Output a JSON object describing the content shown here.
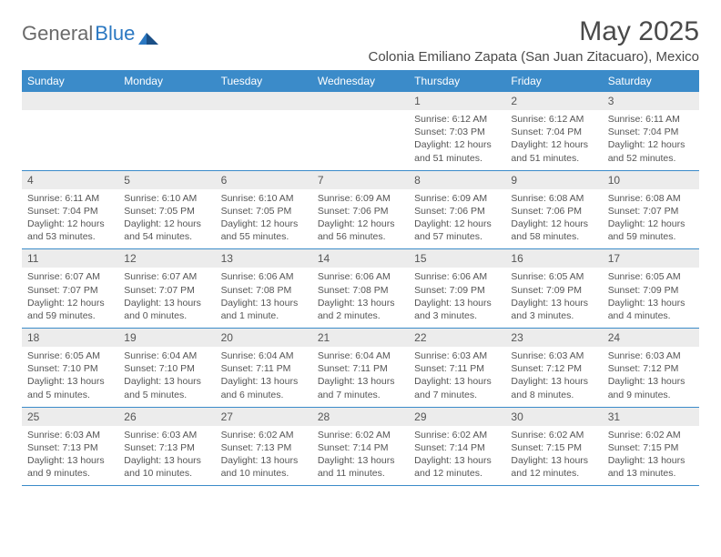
{
  "brand": {
    "part1": "General",
    "part2": "Blue"
  },
  "title": "May 2025",
  "location": "Colonia Emiliano Zapata (San Juan Zitacuaro), Mexico",
  "colors": {
    "header_bg": "#3b8bc9",
    "header_text": "#ffffff",
    "daynum_bg": "#ececec",
    "text": "#555555",
    "rule": "#3b8bc9",
    "title_text": "#4a4a4a",
    "logo_gray": "#6a6a6a",
    "logo_blue": "#2b78c2"
  },
  "fonts": {
    "body_pt": 10.5,
    "dow_pt": 12,
    "title_pt": 30,
    "location_pt": 15
  },
  "dow": [
    "Sunday",
    "Monday",
    "Tuesday",
    "Wednesday",
    "Thursday",
    "Friday",
    "Saturday"
  ],
  "weeks": [
    [
      null,
      null,
      null,
      null,
      {
        "n": "1",
        "sr": "6:12 AM",
        "ss": "7:03 PM",
        "dl1": "12 hours",
        "dl2": "and 51 minutes."
      },
      {
        "n": "2",
        "sr": "6:12 AM",
        "ss": "7:04 PM",
        "dl1": "12 hours",
        "dl2": "and 51 minutes."
      },
      {
        "n": "3",
        "sr": "6:11 AM",
        "ss": "7:04 PM",
        "dl1": "12 hours",
        "dl2": "and 52 minutes."
      }
    ],
    [
      {
        "n": "4",
        "sr": "6:11 AM",
        "ss": "7:04 PM",
        "dl1": "12 hours",
        "dl2": "and 53 minutes."
      },
      {
        "n": "5",
        "sr": "6:10 AM",
        "ss": "7:05 PM",
        "dl1": "12 hours",
        "dl2": "and 54 minutes."
      },
      {
        "n": "6",
        "sr": "6:10 AM",
        "ss": "7:05 PM",
        "dl1": "12 hours",
        "dl2": "and 55 minutes."
      },
      {
        "n": "7",
        "sr": "6:09 AM",
        "ss": "7:06 PM",
        "dl1": "12 hours",
        "dl2": "and 56 minutes."
      },
      {
        "n": "8",
        "sr": "6:09 AM",
        "ss": "7:06 PM",
        "dl1": "12 hours",
        "dl2": "and 57 minutes."
      },
      {
        "n": "9",
        "sr": "6:08 AM",
        "ss": "7:06 PM",
        "dl1": "12 hours",
        "dl2": "and 58 minutes."
      },
      {
        "n": "10",
        "sr": "6:08 AM",
        "ss": "7:07 PM",
        "dl1": "12 hours",
        "dl2": "and 59 minutes."
      }
    ],
    [
      {
        "n": "11",
        "sr": "6:07 AM",
        "ss": "7:07 PM",
        "dl1": "12 hours",
        "dl2": "and 59 minutes."
      },
      {
        "n": "12",
        "sr": "6:07 AM",
        "ss": "7:07 PM",
        "dl1": "13 hours",
        "dl2": "and 0 minutes."
      },
      {
        "n": "13",
        "sr": "6:06 AM",
        "ss": "7:08 PM",
        "dl1": "13 hours",
        "dl2": "and 1 minute."
      },
      {
        "n": "14",
        "sr": "6:06 AM",
        "ss": "7:08 PM",
        "dl1": "13 hours",
        "dl2": "and 2 minutes."
      },
      {
        "n": "15",
        "sr": "6:06 AM",
        "ss": "7:09 PM",
        "dl1": "13 hours",
        "dl2": "and 3 minutes."
      },
      {
        "n": "16",
        "sr": "6:05 AM",
        "ss": "7:09 PM",
        "dl1": "13 hours",
        "dl2": "and 3 minutes."
      },
      {
        "n": "17",
        "sr": "6:05 AM",
        "ss": "7:09 PM",
        "dl1": "13 hours",
        "dl2": "and 4 minutes."
      }
    ],
    [
      {
        "n": "18",
        "sr": "6:05 AM",
        "ss": "7:10 PM",
        "dl1": "13 hours",
        "dl2": "and 5 minutes."
      },
      {
        "n": "19",
        "sr": "6:04 AM",
        "ss": "7:10 PM",
        "dl1": "13 hours",
        "dl2": "and 5 minutes."
      },
      {
        "n": "20",
        "sr": "6:04 AM",
        "ss": "7:11 PM",
        "dl1": "13 hours",
        "dl2": "and 6 minutes."
      },
      {
        "n": "21",
        "sr": "6:04 AM",
        "ss": "7:11 PM",
        "dl1": "13 hours",
        "dl2": "and 7 minutes."
      },
      {
        "n": "22",
        "sr": "6:03 AM",
        "ss": "7:11 PM",
        "dl1": "13 hours",
        "dl2": "and 7 minutes."
      },
      {
        "n": "23",
        "sr": "6:03 AM",
        "ss": "7:12 PM",
        "dl1": "13 hours",
        "dl2": "and 8 minutes."
      },
      {
        "n": "24",
        "sr": "6:03 AM",
        "ss": "7:12 PM",
        "dl1": "13 hours",
        "dl2": "and 9 minutes."
      }
    ],
    [
      {
        "n": "25",
        "sr": "6:03 AM",
        "ss": "7:13 PM",
        "dl1": "13 hours",
        "dl2": "and 9 minutes."
      },
      {
        "n": "26",
        "sr": "6:03 AM",
        "ss": "7:13 PM",
        "dl1": "13 hours",
        "dl2": "and 10 minutes."
      },
      {
        "n": "27",
        "sr": "6:02 AM",
        "ss": "7:13 PM",
        "dl1": "13 hours",
        "dl2": "and 10 minutes."
      },
      {
        "n": "28",
        "sr": "6:02 AM",
        "ss": "7:14 PM",
        "dl1": "13 hours",
        "dl2": "and 11 minutes."
      },
      {
        "n": "29",
        "sr": "6:02 AM",
        "ss": "7:14 PM",
        "dl1": "13 hours",
        "dl2": "and 12 minutes."
      },
      {
        "n": "30",
        "sr": "6:02 AM",
        "ss": "7:15 PM",
        "dl1": "13 hours",
        "dl2": "and 12 minutes."
      },
      {
        "n": "31",
        "sr": "6:02 AM",
        "ss": "7:15 PM",
        "dl1": "13 hours",
        "dl2": "and 13 minutes."
      }
    ]
  ],
  "labels": {
    "sunrise": "Sunrise: ",
    "sunset": "Sunset: ",
    "daylight": "Daylight: "
  }
}
